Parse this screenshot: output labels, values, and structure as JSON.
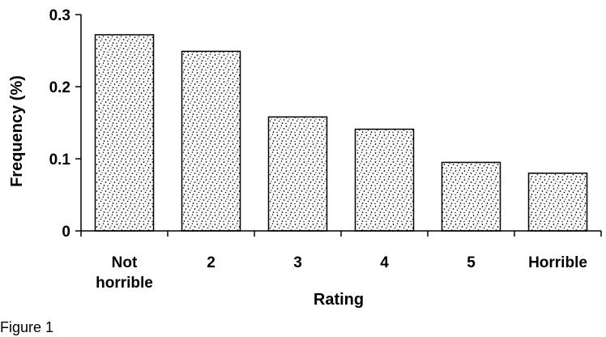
{
  "chart_data": {
    "type": "bar",
    "categories": [
      "Not horrible",
      "2",
      "3",
      "4",
      "5",
      "Horrible"
    ],
    "values": [
      0.272,
      0.249,
      0.158,
      0.141,
      0.095,
      0.08
    ],
    "xlabel": "Rating",
    "ylabel": "Frequency (%)",
    "ylim": [
      0,
      0.3
    ],
    "yticks": [
      "0",
      "0.1",
      "0.2",
      "0.3"
    ],
    "grid": false,
    "bar_fill": "stippled"
  },
  "figure_label": "Figure 1"
}
